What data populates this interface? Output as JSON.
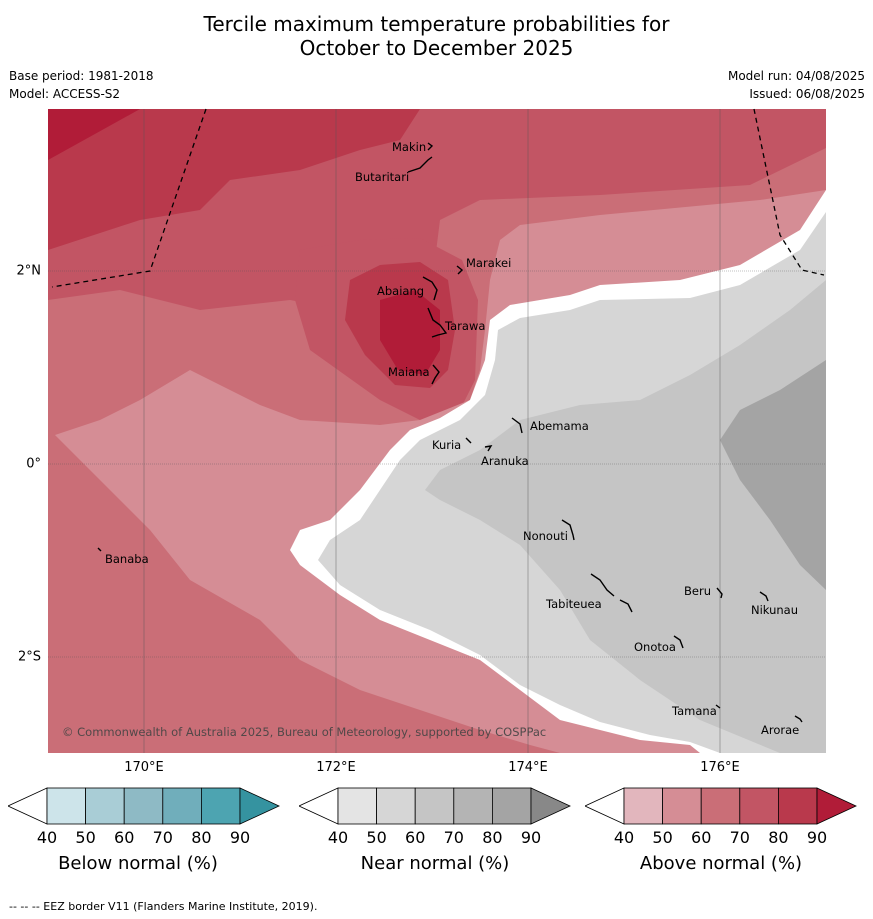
{
  "title_line1": "Tercile maximum temperature probabilities for",
  "title_line2": "October to December 2025",
  "base_period": "Base period: 1981-2018",
  "model": "Model: ACCESS-S2",
  "model_run": "Model run: 04/08/2025",
  "issued": "Issued: 06/08/2025",
  "copyright": "© Commonwealth of Australia 2025, Bureau of Meteorology, supported by COSPPac",
  "footer": "--  --  -- EEZ border V11 (Flanders Marine Institute, 2019).",
  "lon_labels": [
    "170°E",
    "172°E",
    "174°E",
    "176°E"
  ],
  "lat_labels": [
    "2°N",
    "0°",
    "2°S"
  ],
  "places": [
    "Makin",
    "Butaritari",
    "Marakei",
    "Abaiang",
    "Tarawa",
    "Maiana",
    "Abemama",
    "Kuria",
    "Aranuka",
    "Nonouti",
    "Banaba",
    "Beru",
    "Tabiteuea",
    "Nikunau",
    "Onotoa",
    "Tamana",
    "Arorae"
  ],
  "colorbars": [
    {
      "label": "Below normal (%)",
      "ticks": [
        "40",
        "50",
        "60",
        "70",
        "80",
        "90"
      ],
      "colors": [
        "#ffffff",
        "#cde4ea",
        "#a9cdd6",
        "#8ebac5",
        "#70aebb",
        "#4da4b1",
        "#3593a0"
      ]
    },
    {
      "label": "Near normal (%)",
      "ticks": [
        "40",
        "50",
        "60",
        "70",
        "80",
        "90"
      ],
      "colors": [
        "#ffffff",
        "#e4e4e4",
        "#d6d6d6",
        "#c5c5c5",
        "#b4b4b4",
        "#a4a4a4",
        "#888888"
      ]
    },
    {
      "label": "Above normal (%)",
      "ticks": [
        "40",
        "50",
        "60",
        "70",
        "80",
        "90"
      ],
      "colors": [
        "#ffffff",
        "#e2b6bd",
        "#d58d95",
        "#ca6e77",
        "#c25564",
        "#b9394c",
        "#b11c38"
      ]
    }
  ],
  "colors": {
    "above_50": "#d58d95",
    "above_60": "#ca6e77",
    "above_70": "#c25564",
    "above_80": "#b9394c",
    "above_90": "#b11c38",
    "near_40": "#e4e4e4",
    "near_50": "#d6d6d6",
    "near_60": "#c5c5c5",
    "near_70": "#a4a4a4"
  }
}
